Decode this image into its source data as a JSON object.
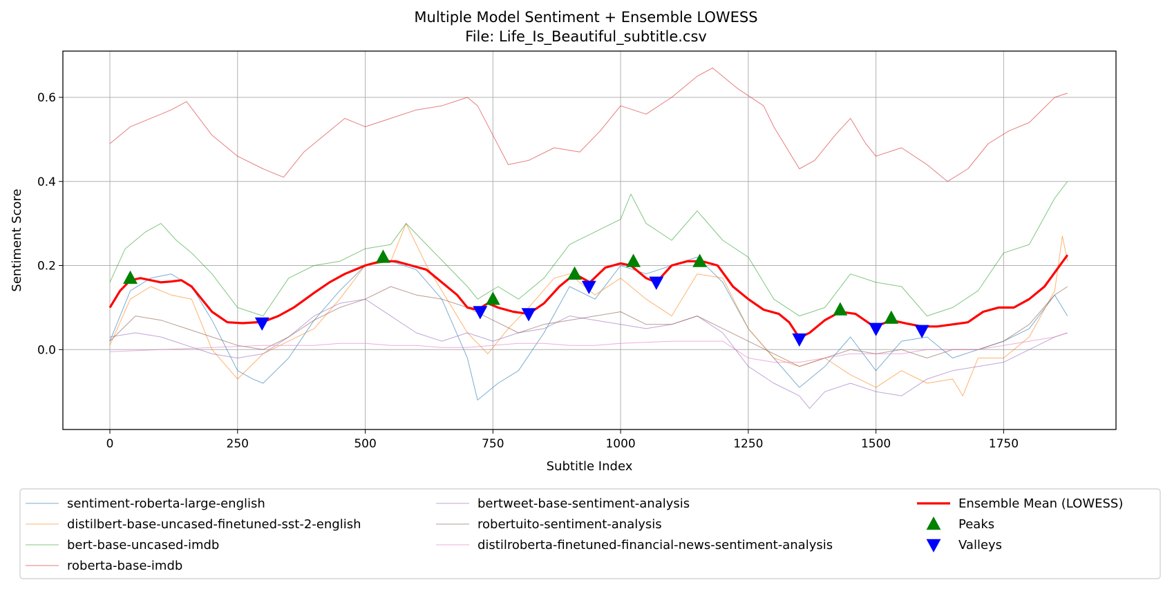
{
  "chart_data": {
    "type": "line",
    "title": "Multiple Model Sentiment + Ensemble LOWESS",
    "subtitle": "File: Life_Is_Beautiful_subtitle.csv",
    "xlabel": "Subtitle Index",
    "ylabel": "Sentiment Score",
    "xlim": [
      -92,
      1970
    ],
    "ylim": [
      -0.19,
      0.71
    ],
    "xticks": [
      0,
      250,
      500,
      750,
      1000,
      1250,
      1500,
      1750
    ],
    "yticks": [
      0.0,
      0.2,
      0.4,
      0.6
    ],
    "ytick_labels": [
      "0.0",
      "0.2",
      "0.4",
      "0.6"
    ],
    "grid": true,
    "legend_position": "below-plot",
    "series": [
      {
        "name": "sentiment-roberta-large-english",
        "color": "#1f77b4",
        "opacity": 0.6,
        "width": 1,
        "x": [
          0,
          40,
          80,
          120,
          160,
          200,
          250,
          280,
          300,
          350,
          400,
          450,
          500,
          550,
          600,
          650,
          700,
          720,
          760,
          800,
          850,
          900,
          950,
          1000,
          1050,
          1100,
          1150,
          1200,
          1250,
          1300,
          1350,
          1400,
          1450,
          1500,
          1550,
          1600,
          1650,
          1700,
          1750,
          1800,
          1850,
          1875
        ],
        "y": [
          0.02,
          0.14,
          0.17,
          0.18,
          0.15,
          0.07,
          -0.05,
          -0.07,
          -0.08,
          -0.02,
          0.07,
          0.14,
          0.2,
          0.21,
          0.19,
          0.12,
          -0.02,
          -0.12,
          -0.08,
          -0.05,
          0.04,
          0.15,
          0.12,
          0.2,
          0.18,
          0.2,
          0.22,
          0.16,
          0.05,
          -0.02,
          -0.09,
          -0.04,
          0.03,
          -0.05,
          0.02,
          0.03,
          -0.02,
          0.0,
          0.02,
          0.05,
          0.13,
          0.08
        ]
      },
      {
        "name": "distilbert-base-uncased-finetuned-sst-2-english",
        "color": "#ff7f0e",
        "opacity": 0.6,
        "width": 1,
        "x": [
          0,
          40,
          80,
          120,
          160,
          200,
          250,
          300,
          350,
          400,
          450,
          500,
          550,
          580,
          620,
          660,
          700,
          740,
          780,
          820,
          870,
          900,
          950,
          1000,
          1050,
          1100,
          1150,
          1200,
          1250,
          1300,
          1350,
          1400,
          1450,
          1500,
          1550,
          1600,
          1650,
          1670,
          1700,
          1750,
          1800,
          1850,
          1865,
          1875
        ],
        "y": [
          0.01,
          0.12,
          0.15,
          0.13,
          0.12,
          0.0,
          -0.07,
          -0.01,
          0.02,
          0.05,
          0.12,
          0.2,
          0.21,
          0.3,
          0.2,
          0.12,
          0.04,
          -0.01,
          0.05,
          0.1,
          0.17,
          0.18,
          0.13,
          0.17,
          0.12,
          0.08,
          0.18,
          0.17,
          0.05,
          -0.02,
          -0.04,
          -0.02,
          -0.06,
          -0.09,
          -0.05,
          -0.08,
          -0.07,
          -0.11,
          -0.02,
          -0.02,
          0.03,
          0.14,
          0.27,
          0.21
        ]
      },
      {
        "name": "bert-base-uncased-imdb",
        "color": "#2ca02c",
        "opacity": 0.6,
        "width": 1,
        "x": [
          0,
          30,
          70,
          100,
          130,
          160,
          200,
          250,
          300,
          350,
          400,
          450,
          500,
          550,
          580,
          620,
          660,
          700,
          720,
          760,
          800,
          850,
          900,
          950,
          1000,
          1020,
          1050,
          1100,
          1150,
          1200,
          1250,
          1300,
          1350,
          1400,
          1450,
          1500,
          1550,
          1600,
          1650,
          1700,
          1750,
          1800,
          1850,
          1875
        ],
        "y": [
          0.16,
          0.24,
          0.28,
          0.3,
          0.26,
          0.23,
          0.18,
          0.1,
          0.08,
          0.17,
          0.2,
          0.21,
          0.24,
          0.25,
          0.3,
          0.25,
          0.2,
          0.15,
          0.12,
          0.15,
          0.12,
          0.17,
          0.25,
          0.28,
          0.31,
          0.37,
          0.3,
          0.26,
          0.33,
          0.26,
          0.22,
          0.12,
          0.08,
          0.1,
          0.18,
          0.16,
          0.15,
          0.08,
          0.1,
          0.14,
          0.23,
          0.25,
          0.36,
          0.4
        ]
      },
      {
        "name": "roberta-base-imdb",
        "color": "#d62728",
        "opacity": 0.6,
        "width": 1,
        "x": [
          0,
          40,
          80,
          120,
          150,
          200,
          250,
          300,
          340,
          380,
          420,
          460,
          500,
          550,
          600,
          650,
          700,
          720,
          750,
          780,
          820,
          870,
          920,
          960,
          1000,
          1050,
          1100,
          1150,
          1180,
          1230,
          1280,
          1300,
          1330,
          1350,
          1380,
          1420,
          1450,
          1480,
          1500,
          1550,
          1600,
          1640,
          1680,
          1720,
          1760,
          1800,
          1850,
          1875
        ],
        "y": [
          0.49,
          0.53,
          0.55,
          0.57,
          0.59,
          0.51,
          0.46,
          0.43,
          0.41,
          0.47,
          0.51,
          0.55,
          0.53,
          0.55,
          0.57,
          0.58,
          0.6,
          0.58,
          0.51,
          0.44,
          0.45,
          0.48,
          0.47,
          0.52,
          0.58,
          0.56,
          0.6,
          0.65,
          0.67,
          0.62,
          0.58,
          0.53,
          0.47,
          0.43,
          0.45,
          0.51,
          0.55,
          0.49,
          0.46,
          0.48,
          0.44,
          0.4,
          0.43,
          0.49,
          0.52,
          0.54,
          0.6,
          0.61
        ]
      },
      {
        "name": "bertweet-base-sentiment-analysis",
        "color": "#9467bd",
        "opacity": 0.6,
        "width": 1,
        "x": [
          0,
          50,
          100,
          150,
          200,
          250,
          300,
          350,
          400,
          450,
          500,
          550,
          600,
          650,
          700,
          750,
          800,
          850,
          900,
          950,
          1000,
          1050,
          1100,
          1150,
          1200,
          1250,
          1300,
          1350,
          1370,
          1400,
          1450,
          1500,
          1550,
          1600,
          1650,
          1700,
          1750,
          1800,
          1850,
          1875
        ],
        "y": [
          0.03,
          0.04,
          0.03,
          0.01,
          -0.01,
          -0.02,
          -0.01,
          0.03,
          0.08,
          0.11,
          0.12,
          0.08,
          0.04,
          0.02,
          0.04,
          0.02,
          0.04,
          0.05,
          0.08,
          0.07,
          0.06,
          0.05,
          0.06,
          0.08,
          0.04,
          -0.04,
          -0.08,
          -0.11,
          -0.14,
          -0.1,
          -0.08,
          -0.1,
          -0.11,
          -0.07,
          -0.05,
          -0.04,
          -0.03,
          0.0,
          0.03,
          0.04
        ]
      },
      {
        "name": "robertuito-sentiment-analysis",
        "color": "#8c564b",
        "opacity": 0.6,
        "width": 1,
        "x": [
          0,
          50,
          100,
          150,
          200,
          250,
          300,
          350,
          400,
          450,
          500,
          550,
          600,
          650,
          700,
          750,
          800,
          850,
          900,
          950,
          1000,
          1050,
          1100,
          1150,
          1200,
          1250,
          1300,
          1350,
          1400,
          1450,
          1500,
          1550,
          1600,
          1650,
          1700,
          1750,
          1800,
          1850,
          1875
        ],
        "y": [
          0.02,
          0.08,
          0.07,
          0.05,
          0.03,
          0.01,
          0.0,
          0.03,
          0.07,
          0.1,
          0.12,
          0.15,
          0.13,
          0.12,
          0.1,
          0.07,
          0.04,
          0.06,
          0.07,
          0.08,
          0.09,
          0.06,
          0.06,
          0.08,
          0.05,
          0.02,
          -0.01,
          -0.04,
          -0.02,
          0.0,
          -0.01,
          0.0,
          -0.02,
          0.0,
          0.0,
          0.02,
          0.06,
          0.13,
          0.15
        ]
      },
      {
        "name": "distilroberta-finetuned-financial-news-sentiment-analysis",
        "color": "#e377c2",
        "opacity": 0.6,
        "width": 1,
        "x": [
          0,
          100,
          200,
          300,
          400,
          450,
          500,
          550,
          600,
          650,
          700,
          750,
          800,
          850,
          900,
          950,
          1000,
          1100,
          1200,
          1250,
          1300,
          1350,
          1400,
          1450,
          1500,
          1550,
          1600,
          1650,
          1700,
          1750,
          1800,
          1850,
          1875
        ],
        "y": [
          -0.005,
          0.0,
          0.005,
          0.01,
          0.01,
          0.015,
          0.015,
          0.01,
          0.01,
          0.005,
          0.005,
          0.01,
          0.015,
          0.015,
          0.01,
          0.01,
          0.015,
          0.02,
          0.02,
          -0.02,
          -0.03,
          -0.03,
          -0.02,
          -0.01,
          -0.01,
          -0.01,
          0.0,
          0.0,
          0.0,
          0.01,
          0.02,
          0.03,
          0.04
        ]
      },
      {
        "name": "Ensemble Mean (LOWESS)",
        "color": "#ff0000",
        "opacity": 1,
        "width": 3.2,
        "x": [
          0,
          20,
          40,
          60,
          80,
          100,
          120,
          140,
          160,
          180,
          200,
          230,
          260,
          300,
          330,
          360,
          400,
          430,
          460,
          500,
          530,
          560,
          590,
          620,
          650,
          680,
          700,
          720,
          740,
          760,
          790,
          820,
          850,
          880,
          910,
          940,
          970,
          1000,
          1020,
          1050,
          1070,
          1100,
          1130,
          1160,
          1190,
          1220,
          1250,
          1280,
          1310,
          1330,
          1350,
          1370,
          1400,
          1430,
          1460,
          1490,
          1510,
          1530,
          1560,
          1590,
          1620,
          1650,
          1680,
          1710,
          1740,
          1770,
          1800,
          1830,
          1860,
          1875
        ],
        "y": [
          0.1,
          0.14,
          0.165,
          0.17,
          0.165,
          0.16,
          0.162,
          0.165,
          0.15,
          0.12,
          0.09,
          0.065,
          0.063,
          0.066,
          0.08,
          0.1,
          0.135,
          0.16,
          0.18,
          0.2,
          0.21,
          0.21,
          0.2,
          0.19,
          0.16,
          0.13,
          0.1,
          0.095,
          0.11,
          0.1,
          0.09,
          0.085,
          0.11,
          0.15,
          0.18,
          0.16,
          0.195,
          0.205,
          0.2,
          0.17,
          0.16,
          0.2,
          0.21,
          0.21,
          0.2,
          0.15,
          0.12,
          0.095,
          0.085,
          0.065,
          0.028,
          0.04,
          0.07,
          0.09,
          0.085,
          0.06,
          0.06,
          0.07,
          0.062,
          0.055,
          0.055,
          0.06,
          0.065,
          0.09,
          0.1,
          0.1,
          0.12,
          0.15,
          0.2,
          0.225
        ]
      }
    ],
    "markers": [
      {
        "name": "Peaks",
        "shape": "triangle-up",
        "color": "#008000",
        "x": [
          40,
          535,
          750,
          910,
          1025,
          1155,
          1430,
          1530
        ],
        "y": [
          0.17,
          0.22,
          0.12,
          0.18,
          0.21,
          0.21,
          0.095,
          0.075
        ]
      },
      {
        "name": "Valleys",
        "shape": "triangle-down",
        "color": "#0000ff",
        "x": [
          298,
          725,
          820,
          938,
          1070,
          1350,
          1500,
          1590
        ],
        "y": [
          0.063,
          0.09,
          0.085,
          0.15,
          0.16,
          0.025,
          0.05,
          0.045
        ]
      }
    ],
    "legend": {
      "columns": [
        [
          "sentiment-roberta-large-english",
          "distilbert-base-uncased-finetuned-sst-2-english",
          "bert-base-uncased-imdb",
          "roberta-base-imdb"
        ],
        [
          "bertweet-base-sentiment-analysis",
          "robertuito-sentiment-analysis",
          "distilroberta-finetuned-financial-news-sentiment-analysis"
        ],
        [
          "Ensemble Mean (LOWESS)",
          "Peaks",
          "Valleys"
        ]
      ]
    }
  }
}
